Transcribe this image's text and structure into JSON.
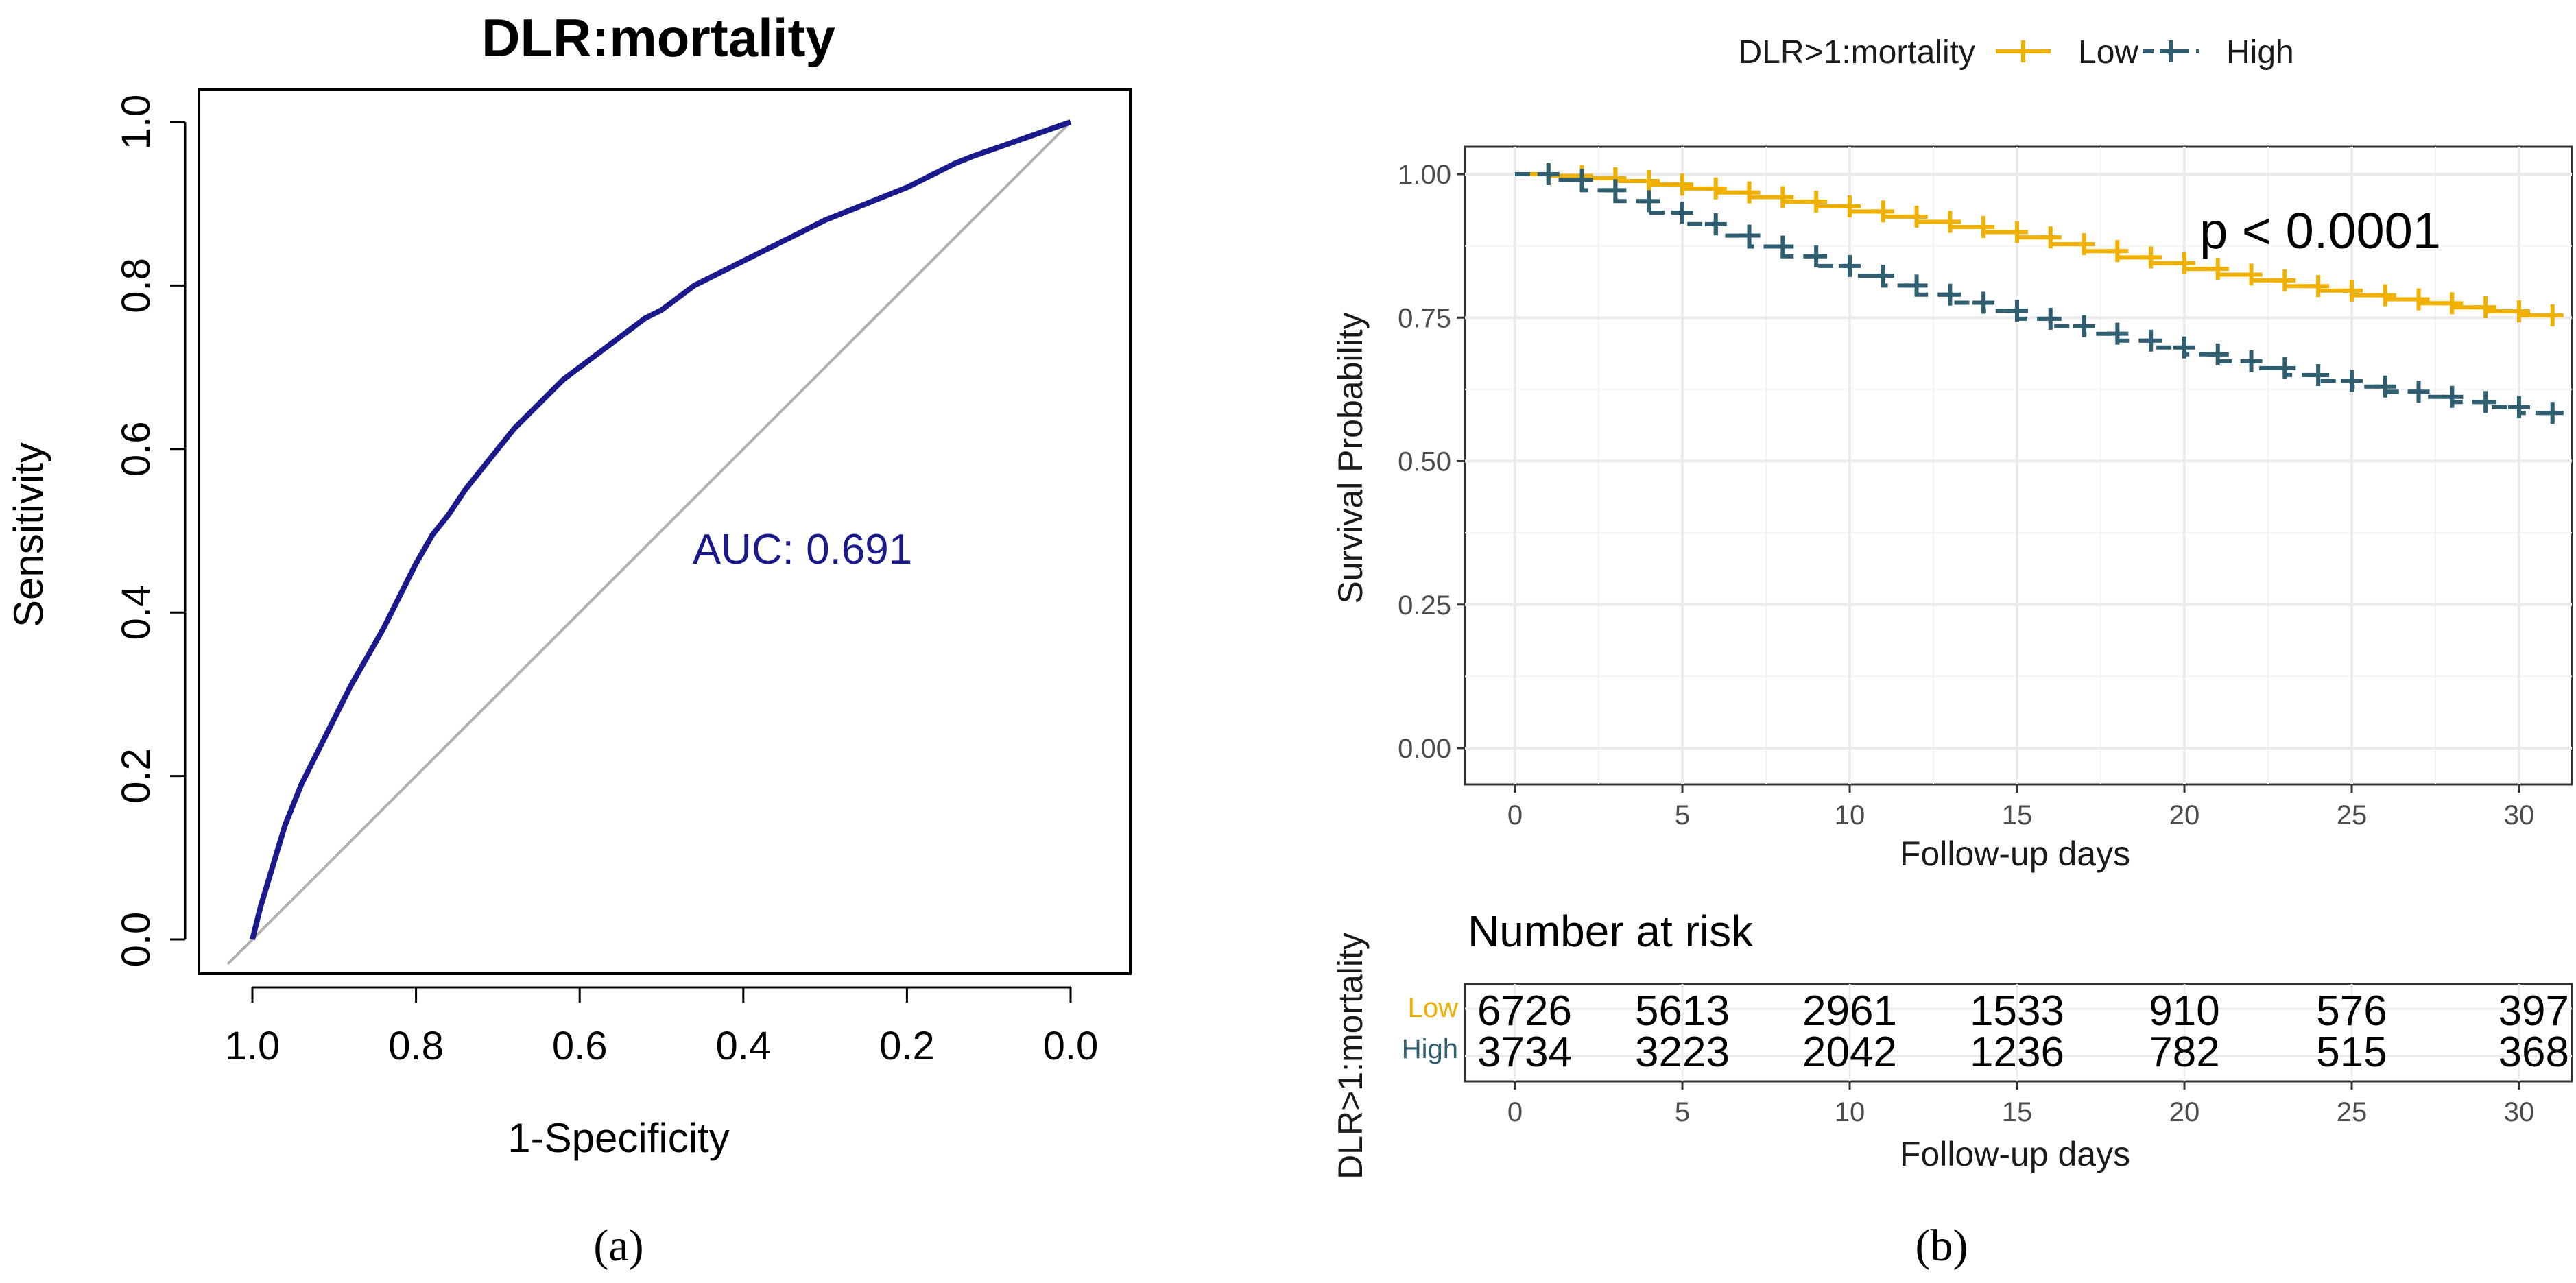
{
  "colors": {
    "roc_curve": "#1a1a8c",
    "diagonal": "#b0b0b0",
    "low": "#EFB000",
    "high": "#2E5E70",
    "grid": "#ebebeb",
    "grid_minor": "#f4f4f4"
  },
  "panel_labels": {
    "a": "(a)",
    "b": "(b)"
  },
  "chart_data": [
    {
      "type": "line",
      "panel": "a",
      "title": "DLR:mortality",
      "xlabel": "1-Specificity",
      "ylabel": "Sensitivity",
      "xlim": [
        1.0,
        0.0
      ],
      "ylim": [
        0.0,
        1.0
      ],
      "x_ticks": [
        1.0,
        0.8,
        0.6,
        0.4,
        0.2,
        0.0
      ],
      "y_ticks": [
        0.0,
        0.2,
        0.4,
        0.6,
        0.8,
        1.0
      ],
      "annotation": "AUC: 0.691",
      "series": [
        {
          "name": "ROC",
          "x": [
            1.0,
            0.99,
            0.975,
            0.96,
            0.94,
            0.92,
            0.9,
            0.88,
            0.86,
            0.84,
            0.82,
            0.8,
            0.78,
            0.76,
            0.74,
            0.72,
            0.7,
            0.68,
            0.66,
            0.64,
            0.62,
            0.6,
            0.58,
            0.56,
            0.54,
            0.52,
            0.5,
            0.48,
            0.46,
            0.44,
            0.42,
            0.4,
            0.38,
            0.36,
            0.34,
            0.32,
            0.3,
            0.28,
            0.26,
            0.24,
            0.22,
            0.2,
            0.18,
            0.16,
            0.14,
            0.12,
            0.1,
            0.08,
            0.06,
            0.04,
            0.02,
            0.0
          ],
          "y": [
            0.0,
            0.04,
            0.09,
            0.14,
            0.19,
            0.23,
            0.27,
            0.31,
            0.345,
            0.38,
            0.42,
            0.46,
            0.495,
            0.52,
            0.55,
            0.575,
            0.6,
            0.625,
            0.645,
            0.665,
            0.685,
            0.7,
            0.715,
            0.73,
            0.745,
            0.76,
            0.77,
            0.785,
            0.8,
            0.81,
            0.82,
            0.83,
            0.84,
            0.85,
            0.86,
            0.87,
            0.88,
            0.888,
            0.896,
            0.904,
            0.912,
            0.92,
            0.93,
            0.94,
            0.95,
            0.958,
            0.965,
            0.972,
            0.979,
            0.986,
            0.993,
            1.0
          ]
        },
        {
          "name": "reference",
          "x": [
            1.03,
            0.0
          ],
          "y": [
            -0.03,
            1.0
          ]
        }
      ]
    },
    {
      "type": "line",
      "panel": "b",
      "xlabel": "Follow-up days",
      "ylabel": "Survival Probability",
      "xlim": [
        0,
        31
      ],
      "ylim": [
        0.0,
        1.0
      ],
      "x_ticks": [
        0,
        5,
        10,
        15,
        20,
        25,
        30
      ],
      "y_ticks": [
        0.0,
        0.25,
        0.5,
        0.75,
        1.0
      ],
      "y_tick_labels": [
        "0.00",
        "0.25",
        "0.50",
        "0.75",
        "1.00"
      ],
      "legend": {
        "title": "DLR>1:mortality",
        "position": "top"
      },
      "annotation": "p < 0.0001",
      "series": [
        {
          "name": "Low",
          "x": [
            0,
            1,
            2,
            3,
            4,
            5,
            6,
            7,
            8,
            9,
            10,
            11,
            12,
            13,
            14,
            15,
            16,
            17,
            18,
            19,
            20,
            21,
            22,
            23,
            24,
            25,
            26,
            27,
            28,
            29,
            30,
            31
          ],
          "y": [
            1.0,
            0.997,
            0.993,
            0.988,
            0.982,
            0.975,
            0.968,
            0.96,
            0.952,
            0.944,
            0.935,
            0.926,
            0.917,
            0.908,
            0.899,
            0.89,
            0.878,
            0.866,
            0.855,
            0.845,
            0.835,
            0.825,
            0.815,
            0.805,
            0.797,
            0.789,
            0.782,
            0.775,
            0.768,
            0.761,
            0.754,
            0.748
          ]
        },
        {
          "name": "High",
          "x": [
            0,
            1,
            2,
            3,
            4,
            5,
            6,
            7,
            8,
            9,
            10,
            11,
            12,
            13,
            14,
            15,
            16,
            17,
            18,
            19,
            20,
            21,
            22,
            23,
            24,
            25,
            26,
            27,
            28,
            29,
            30,
            31
          ],
          "y": [
            1.0,
            0.99,
            0.972,
            0.953,
            0.933,
            0.913,
            0.893,
            0.874,
            0.857,
            0.84,
            0.823,
            0.806,
            0.79,
            0.776,
            0.762,
            0.748,
            0.735,
            0.722,
            0.71,
            0.698,
            0.686,
            0.674,
            0.662,
            0.65,
            0.64,
            0.63,
            0.621,
            0.612,
            0.603,
            0.594,
            0.584,
            0.568
          ]
        }
      ]
    },
    {
      "type": "table",
      "panel": "b",
      "title": "Number at risk",
      "ylabel": "DLR>1:mortality",
      "xlabel": "Follow-up days",
      "x_ticks": [
        0,
        5,
        10,
        15,
        20,
        25,
        30
      ],
      "rows": [
        {
          "name": "Low",
          "values": [
            "6726",
            "5613",
            "2961",
            "1533",
            "910",
            "576",
            "397"
          ]
        },
        {
          "name": "High",
          "values": [
            "3734",
            "3223",
            "2042",
            "1236",
            "782",
            "515",
            "368"
          ]
        }
      ]
    }
  ]
}
